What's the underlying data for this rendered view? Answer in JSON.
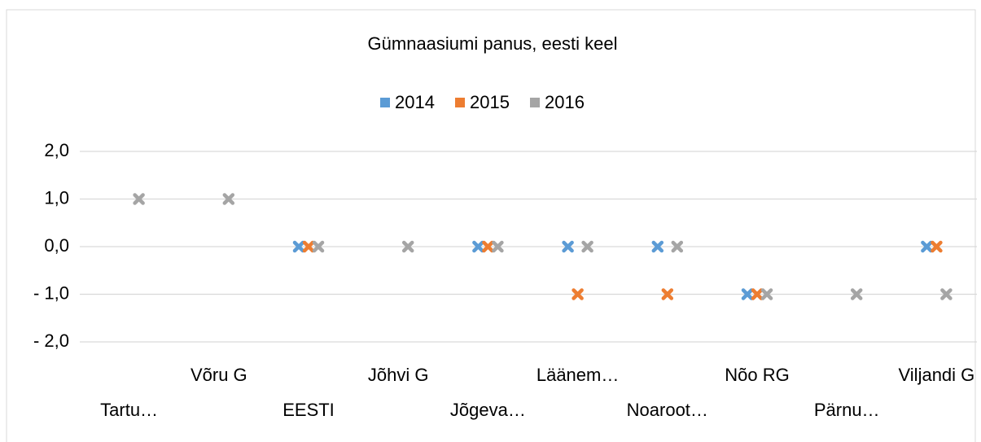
{
  "chart_data": {
    "type": "scatter",
    "title": "Gümnaasiumi panus, eesti keel",
    "categories": [
      "Tartu…",
      "Võru G",
      "EESTI",
      "Jõhvi G",
      "Jõgeva…",
      "Läänem…",
      "Noaroot…",
      "Nõo RG",
      "Pärnu…",
      "Viljandi G"
    ],
    "series": [
      {
        "name": "2014",
        "color": "#5b9bd5",
        "values": [
          null,
          null,
          0,
          null,
          0,
          0,
          0,
          -1,
          null,
          0
        ]
      },
      {
        "name": "2015",
        "color": "#ed7d31",
        "values": [
          null,
          null,
          0,
          null,
          0,
          -1,
          -1,
          -1,
          null,
          0
        ]
      },
      {
        "name": "2016",
        "color": "#a5a5a5",
        "values": [
          1,
          1,
          0,
          0,
          0,
          0,
          0,
          -1,
          -1,
          -1
        ]
      }
    ],
    "ylim": [
      -2,
      2
    ],
    "yticks": [
      {
        "value": 2,
        "label": "2,0"
      },
      {
        "value": 1,
        "label": "1,0"
      },
      {
        "value": 0,
        "label": "0,0"
      },
      {
        "value": -1,
        "label": "- 1,0"
      },
      {
        "value": -2,
        "label": "- 2,0"
      }
    ],
    "grid": true,
    "legend": "top"
  }
}
